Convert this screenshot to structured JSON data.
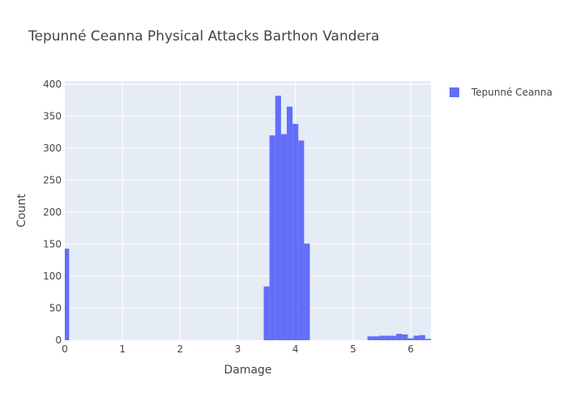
{
  "chart_data": {
    "type": "bar",
    "title": "Tepunné Ceanna Physical Attacks Barthon Vandera",
    "xlabel": "Damage",
    "ylabel": "Count",
    "xlim": [
      0,
      6.35
    ],
    "ylim": [
      0,
      405
    ],
    "xticks": [
      0,
      1,
      2,
      3,
      4,
      5,
      6
    ],
    "yticks": [
      0,
      50,
      100,
      150,
      200,
      250,
      300,
      350,
      400
    ],
    "grid": true,
    "legend_position": "top-right",
    "bar_color": "#636efa",
    "plot_bg": "#e5ecf6",
    "series": [
      {
        "name": "Tepunné Ceanna",
        "bins": [
          {
            "x0": 0.0,
            "x1": 0.075,
            "count": 143
          },
          {
            "x0": 3.45,
            "x1": 3.55,
            "count": 84
          },
          {
            "x0": 3.55,
            "x1": 3.65,
            "count": 320
          },
          {
            "x0": 3.65,
            "x1": 3.75,
            "count": 382
          },
          {
            "x0": 3.75,
            "x1": 3.85,
            "count": 322
          },
          {
            "x0": 3.85,
            "x1": 3.95,
            "count": 365
          },
          {
            "x0": 3.95,
            "x1": 4.05,
            "count": 338
          },
          {
            "x0": 4.05,
            "x1": 4.15,
            "count": 312
          },
          {
            "x0": 4.15,
            "x1": 4.25,
            "count": 151
          },
          {
            "x0": 5.25,
            "x1": 5.35,
            "count": 6
          },
          {
            "x0": 5.35,
            "x1": 5.45,
            "count": 6
          },
          {
            "x0": 5.45,
            "x1": 5.55,
            "count": 7
          },
          {
            "x0": 5.55,
            "x1": 5.65,
            "count": 7
          },
          {
            "x0": 5.65,
            "x1": 5.75,
            "count": 7
          },
          {
            "x0": 5.75,
            "x1": 5.85,
            "count": 10
          },
          {
            "x0": 5.85,
            "x1": 5.95,
            "count": 9
          },
          {
            "x0": 5.95,
            "x1": 6.05,
            "count": 3
          },
          {
            "x0": 6.05,
            "x1": 6.15,
            "count": 7
          },
          {
            "x0": 6.15,
            "x1": 6.25,
            "count": 8
          },
          {
            "x0": 6.25,
            "x1": 6.35,
            "count": 2
          }
        ]
      }
    ]
  }
}
